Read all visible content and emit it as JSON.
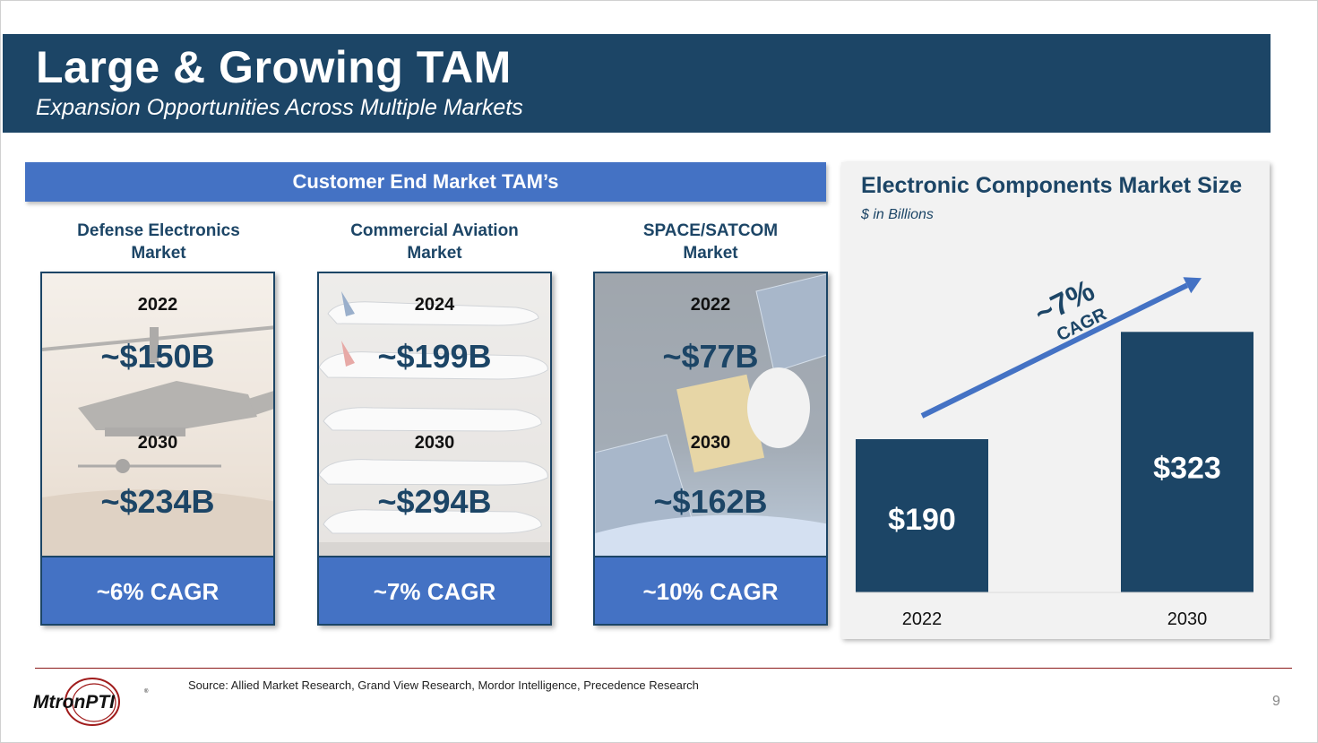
{
  "header": {
    "title": "Large & Growing TAM",
    "subtitle": "Expansion Opportunities Across Multiple Markets"
  },
  "tam_section": {
    "title": "Customer End Market TAM’s",
    "markets": [
      {
        "label_line1": "Defense Electronics",
        "label_line2": "Market",
        "year_start": "2022",
        "value_start": "~$150B",
        "year_end": "2030",
        "value_end": "~$234B",
        "cagr": "~6% CAGR",
        "image": "helicopter-photo"
      },
      {
        "label_line1": "Commercial Aviation",
        "label_line2": "Market",
        "year_start": "2024",
        "value_start": "~$199B",
        "year_end": "2030",
        "value_end": "~$294B",
        "cagr": "~7% CAGR",
        "image": "airliners-photo"
      },
      {
        "label_line1": "SPACE/SATCOM",
        "label_line2": "Market",
        "year_start": "2022",
        "value_start": "~$77B",
        "year_end": "2030",
        "value_end": "~$162B",
        "cagr": "~10% CAGR",
        "image": "satellite-photo"
      }
    ]
  },
  "chart_data": {
    "type": "bar",
    "title": "Electronic Components Market Size",
    "subtitle": "$ in Billions",
    "categories": [
      "2022",
      "2030"
    ],
    "values": [
      190,
      323
    ],
    "data_labels": [
      "$190",
      "$323"
    ],
    "annotation": {
      "value": "~7%",
      "label": "CAGR"
    },
    "ylim": [
      0,
      400
    ],
    "grid": false,
    "colors": {
      "bar": "#1c4566",
      "arrow": "#4472c4"
    }
  },
  "footer": {
    "source": "Source: Allied Market Research, Grand View Research, Mordor Intelligence, Precedence Research",
    "page_number": "9",
    "logo_text": "MtronPTI",
    "logo_mark": "®"
  },
  "colors": {
    "navy": "#1c4566",
    "blue": "#4472c4",
    "rule": "#8b1a1a"
  }
}
